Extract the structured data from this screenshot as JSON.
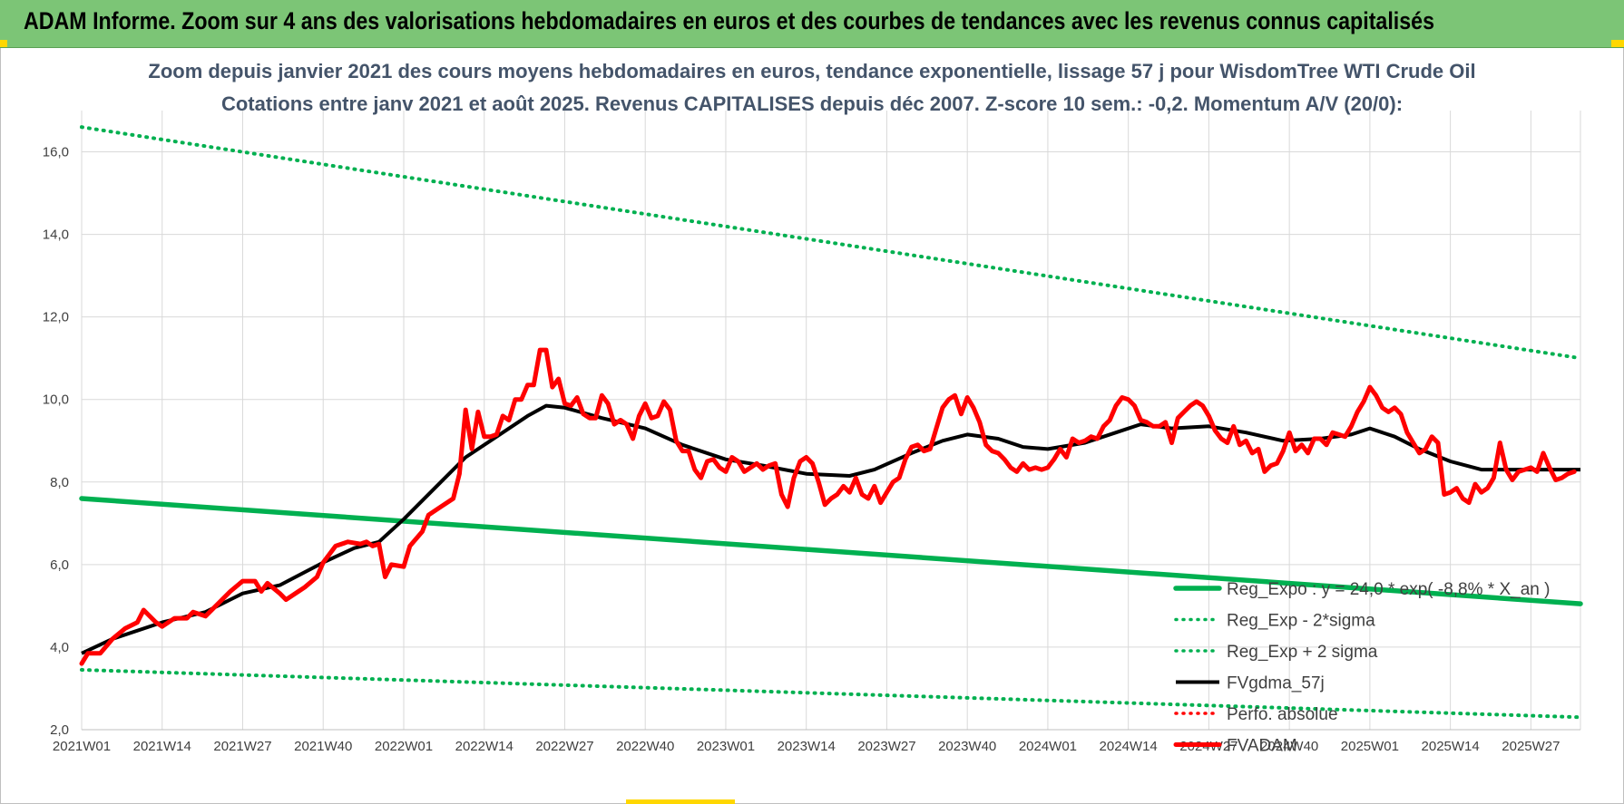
{
  "header": {
    "title": "ADAM Informe. Zoom sur 4 ans des valorisations hebdomadaires en euros et des courbes de tendances avec les revenus connus capitalisés"
  },
  "colors": {
    "header_bg": "#7cc576",
    "reg_expo": "#00b050",
    "reg_bands": "#00b050",
    "fvgdma": "#000000",
    "perfo": "#ff0000",
    "fvadam": "#ff0000",
    "grid": "#d9d9d9",
    "subtitle": "#44546a"
  },
  "chart_data": {
    "type": "line",
    "title": "Zoom depuis janvier 2021 des cours moyens hebdomadaires en euros, tendance exponentielle, lissage 57 j pour WisdomTree WTI Crude Oil",
    "subtitle": "Cotations entre janv 2021 et août 2025. Revenus CAPITALISES depuis déc 2007. Z-score 10 sem.: -0,2. Momentum A/V (20/0):",
    "xlabel": "",
    "ylabel": "",
    "ylim": [
      2,
      17
    ],
    "yticks": [
      2,
      4,
      6,
      8,
      10,
      12,
      14,
      16
    ],
    "ytick_labels": [
      "2,0",
      "4,0",
      "6,0",
      "8,0",
      "10,0",
      "12,0",
      "14,0",
      "16,0"
    ],
    "x_ticks": [
      {
        "index": 0,
        "label": "2021W01"
      },
      {
        "index": 13,
        "label": "2021W14"
      },
      {
        "index": 26,
        "label": "2021W27"
      },
      {
        "index": 39,
        "label": "2021W40"
      },
      {
        "index": 52,
        "label": "2022W01"
      },
      {
        "index": 65,
        "label": "2022W14"
      },
      {
        "index": 78,
        "label": "2022W27"
      },
      {
        "index": 91,
        "label": "2022W40"
      },
      {
        "index": 104,
        "label": "2023W01"
      },
      {
        "index": 117,
        "label": "2023W14"
      },
      {
        "index": 130,
        "label": "2023W27"
      },
      {
        "index": 143,
        "label": "2023W40"
      },
      {
        "index": 156,
        "label": "2024W01"
      },
      {
        "index": 169,
        "label": "2024W14"
      },
      {
        "index": 182,
        "label": "2024W27"
      },
      {
        "index": 195,
        "label": "2024W40"
      },
      {
        "index": 208,
        "label": "2025W01"
      },
      {
        "index": 221,
        "label": "2025W14"
      },
      {
        "index": 234,
        "label": "2025W27"
      }
    ],
    "x_last_index": 242,
    "legend_position": "bottom-right",
    "grid": true,
    "series": [
      {
        "name": "Reg_Expo : y = 24,0 * exp( -8,8% *  X_an )",
        "style": "solid-thick",
        "color": "#00b050",
        "points": [
          [
            0,
            7.6
          ],
          [
            242,
            5.05
          ]
        ]
      },
      {
        "name": "Reg_Exp - 2*sigma",
        "style": "dotted",
        "color": "#00b050",
        "points": [
          [
            0,
            3.45
          ],
          [
            242,
            2.3
          ]
        ]
      },
      {
        "name": "Reg_Exp + 2 sigma",
        "style": "dotted",
        "color": "#00b050",
        "points": [
          [
            0,
            16.6
          ],
          [
            242,
            11.0
          ]
        ]
      },
      {
        "name": "FVgdma_57j",
        "style": "solid",
        "color": "#000000",
        "points": [
          [
            0,
            3.85
          ],
          [
            5,
            4.2
          ],
          [
            13,
            4.6
          ],
          [
            20,
            4.85
          ],
          [
            26,
            5.3
          ],
          [
            32,
            5.5
          ],
          [
            39,
            6.05
          ],
          [
            44,
            6.4
          ],
          [
            48,
            6.55
          ],
          [
            52,
            7.1
          ],
          [
            58,
            8.0
          ],
          [
            62,
            8.6
          ],
          [
            66,
            9.0
          ],
          [
            72,
            9.6
          ],
          [
            75,
            9.85
          ],
          [
            78,
            9.8
          ],
          [
            84,
            9.55
          ],
          [
            91,
            9.3
          ],
          [
            97,
            8.9
          ],
          [
            104,
            8.55
          ],
          [
            110,
            8.4
          ],
          [
            117,
            8.2
          ],
          [
            124,
            8.15
          ],
          [
            128,
            8.3
          ],
          [
            134,
            8.7
          ],
          [
            139,
            9.0
          ],
          [
            143,
            9.15
          ],
          [
            148,
            9.05
          ],
          [
            152,
            8.85
          ],
          [
            156,
            8.8
          ],
          [
            162,
            8.95
          ],
          [
            167,
            9.2
          ],
          [
            171,
            9.4
          ],
          [
            176,
            9.3
          ],
          [
            182,
            9.35
          ],
          [
            188,
            9.2
          ],
          [
            194,
            9.0
          ],
          [
            200,
            9.05
          ],
          [
            205,
            9.15
          ],
          [
            208,
            9.3
          ],
          [
            212,
            9.1
          ],
          [
            216,
            8.8
          ],
          [
            221,
            8.5
          ],
          [
            226,
            8.3
          ],
          [
            231,
            8.3
          ],
          [
            236,
            8.3
          ],
          [
            242,
            8.3
          ]
        ]
      },
      {
        "name": "Perfo. absolue",
        "style": "dotted",
        "color": "#ff0000",
        "points": []
      },
      {
        "name": "FVADAM",
        "style": "solid-thick",
        "color": "#ff0000",
        "points": [
          [
            0,
            3.6
          ],
          [
            1,
            3.85
          ],
          [
            3,
            3.85
          ],
          [
            5,
            4.2
          ],
          [
            7,
            4.45
          ],
          [
            9,
            4.6
          ],
          [
            10,
            4.9
          ],
          [
            12,
            4.6
          ],
          [
            13,
            4.5
          ],
          [
            15,
            4.7
          ],
          [
            17,
            4.7
          ],
          [
            18,
            4.85
          ],
          [
            20,
            4.75
          ],
          [
            22,
            5.05
          ],
          [
            24,
            5.35
          ],
          [
            26,
            5.6
          ],
          [
            28,
            5.6
          ],
          [
            29,
            5.35
          ],
          [
            30,
            5.55
          ],
          [
            32,
            5.3
          ],
          [
            33,
            5.15
          ],
          [
            35,
            5.35
          ],
          [
            36,
            5.45
          ],
          [
            38,
            5.7
          ],
          [
            39,
            6.05
          ],
          [
            41,
            6.45
          ],
          [
            43,
            6.55
          ],
          [
            45,
            6.5
          ],
          [
            46,
            6.55
          ],
          [
            47,
            6.45
          ],
          [
            48,
            6.5
          ],
          [
            49,
            5.7
          ],
          [
            50,
            6.0
          ],
          [
            52,
            5.95
          ],
          [
            53,
            6.45
          ],
          [
            55,
            6.8
          ],
          [
            56,
            7.2
          ],
          [
            58,
            7.4
          ],
          [
            60,
            7.6
          ],
          [
            61,
            8.2
          ],
          [
            62,
            9.75
          ],
          [
            63,
            8.8
          ],
          [
            64,
            9.7
          ],
          [
            65,
            9.1
          ],
          [
            66,
            9.1
          ],
          [
            67,
            9.15
          ],
          [
            68,
            9.6
          ],
          [
            69,
            9.5
          ],
          [
            70,
            10.0
          ],
          [
            71,
            10.0
          ],
          [
            72,
            10.35
          ],
          [
            73,
            10.35
          ],
          [
            74,
            11.2
          ],
          [
            75,
            11.2
          ],
          [
            76,
            10.3
          ],
          [
            77,
            10.5
          ],
          [
            78,
            9.9
          ],
          [
            79,
            9.85
          ],
          [
            80,
            10.05
          ],
          [
            81,
            9.65
          ],
          [
            82,
            9.55
          ],
          [
            83,
            9.55
          ],
          [
            84,
            10.1
          ],
          [
            85,
            9.9
          ],
          [
            86,
            9.4
          ],
          [
            87,
            9.5
          ],
          [
            88,
            9.4
          ],
          [
            89,
            9.05
          ],
          [
            90,
            9.6
          ],
          [
            91,
            9.9
          ],
          [
            92,
            9.55
          ],
          [
            93,
            9.6
          ],
          [
            94,
            9.95
          ],
          [
            95,
            9.75
          ],
          [
            96,
            9.0
          ],
          [
            97,
            8.75
          ],
          [
            98,
            8.75
          ],
          [
            99,
            8.3
          ],
          [
            100,
            8.1
          ],
          [
            101,
            8.5
          ],
          [
            102,
            8.55
          ],
          [
            103,
            8.35
          ],
          [
            104,
            8.25
          ],
          [
            105,
            8.6
          ],
          [
            106,
            8.5
          ],
          [
            107,
            8.25
          ],
          [
            108,
            8.35
          ],
          [
            109,
            8.45
          ],
          [
            110,
            8.3
          ],
          [
            111,
            8.4
          ],
          [
            112,
            8.45
          ],
          [
            113,
            7.7
          ],
          [
            114,
            7.4
          ],
          [
            115,
            8.1
          ],
          [
            116,
            8.5
          ],
          [
            117,
            8.6
          ],
          [
            118,
            8.45
          ],
          [
            119,
            8.0
          ],
          [
            120,
            7.45
          ],
          [
            121,
            7.6
          ],
          [
            122,
            7.7
          ],
          [
            123,
            7.9
          ],
          [
            124,
            7.75
          ],
          [
            125,
            8.1
          ],
          [
            126,
            7.7
          ],
          [
            127,
            7.6
          ],
          [
            128,
            7.9
          ],
          [
            129,
            7.5
          ],
          [
            130,
            7.75
          ],
          [
            131,
            8.0
          ],
          [
            132,
            8.1
          ],
          [
            133,
            8.55
          ],
          [
            134,
            8.85
          ],
          [
            135,
            8.9
          ],
          [
            136,
            8.75
          ],
          [
            137,
            8.8
          ],
          [
            138,
            9.3
          ],
          [
            139,
            9.8
          ],
          [
            140,
            10.0
          ],
          [
            141,
            10.1
          ],
          [
            142,
            9.65
          ],
          [
            143,
            10.05
          ],
          [
            144,
            9.8
          ],
          [
            145,
            9.45
          ],
          [
            146,
            8.9
          ],
          [
            147,
            8.75
          ],
          [
            148,
            8.7
          ],
          [
            149,
            8.55
          ],
          [
            150,
            8.35
          ],
          [
            151,
            8.25
          ],
          [
            152,
            8.45
          ],
          [
            153,
            8.3
          ],
          [
            154,
            8.35
          ],
          [
            155,
            8.3
          ],
          [
            156,
            8.35
          ],
          [
            157,
            8.55
          ],
          [
            158,
            8.8
          ],
          [
            159,
            8.6
          ],
          [
            160,
            9.05
          ],
          [
            161,
            8.95
          ],
          [
            162,
            9.0
          ],
          [
            163,
            9.1
          ],
          [
            164,
            9.05
          ],
          [
            165,
            9.35
          ],
          [
            166,
            9.5
          ],
          [
            167,
            9.85
          ],
          [
            168,
            10.05
          ],
          [
            169,
            10.0
          ],
          [
            170,
            9.85
          ],
          [
            171,
            9.5
          ],
          [
            172,
            9.45
          ],
          [
            173,
            9.35
          ],
          [
            174,
            9.35
          ],
          [
            175,
            9.45
          ],
          [
            176,
            8.95
          ],
          [
            177,
            9.55
          ],
          [
            178,
            9.7
          ],
          [
            179,
            9.85
          ],
          [
            180,
            9.95
          ],
          [
            181,
            9.85
          ],
          [
            182,
            9.6
          ],
          [
            183,
            9.25
          ],
          [
            184,
            9.05
          ],
          [
            185,
            8.95
          ],
          [
            186,
            9.35
          ],
          [
            187,
            8.9
          ],
          [
            188,
            9.0
          ],
          [
            189,
            8.7
          ],
          [
            190,
            8.8
          ],
          [
            191,
            8.25
          ],
          [
            192,
            8.4
          ],
          [
            193,
            8.45
          ],
          [
            194,
            8.75
          ],
          [
            195,
            9.2
          ],
          [
            196,
            8.75
          ],
          [
            197,
            8.9
          ],
          [
            198,
            8.7
          ],
          [
            199,
            9.05
          ],
          [
            200,
            9.05
          ],
          [
            201,
            8.9
          ],
          [
            202,
            9.2
          ],
          [
            203,
            9.15
          ],
          [
            204,
            9.1
          ],
          [
            205,
            9.35
          ],
          [
            206,
            9.7
          ],
          [
            207,
            9.95
          ],
          [
            208,
            10.3
          ],
          [
            209,
            10.1
          ],
          [
            210,
            9.8
          ],
          [
            211,
            9.7
          ],
          [
            212,
            9.8
          ],
          [
            213,
            9.65
          ],
          [
            214,
            9.2
          ],
          [
            215,
            8.95
          ],
          [
            216,
            8.7
          ],
          [
            217,
            8.8
          ],
          [
            218,
            9.1
          ],
          [
            219,
            8.95
          ],
          [
            220,
            7.7
          ],
          [
            221,
            7.75
          ],
          [
            222,
            7.85
          ],
          [
            223,
            7.6
          ],
          [
            224,
            7.5
          ],
          [
            225,
            7.95
          ],
          [
            226,
            7.75
          ],
          [
            227,
            7.85
          ],
          [
            228,
            8.1
          ],
          [
            229,
            8.95
          ],
          [
            230,
            8.3
          ],
          [
            231,
            8.05
          ],
          [
            232,
            8.25
          ],
          [
            233,
            8.3
          ],
          [
            234,
            8.35
          ],
          [
            235,
            8.25
          ],
          [
            236,
            8.7
          ],
          [
            237,
            8.35
          ],
          [
            238,
            8.05
          ],
          [
            239,
            8.1
          ],
          [
            240,
            8.2
          ],
          [
            241,
            8.25
          ]
        ]
      }
    ]
  }
}
